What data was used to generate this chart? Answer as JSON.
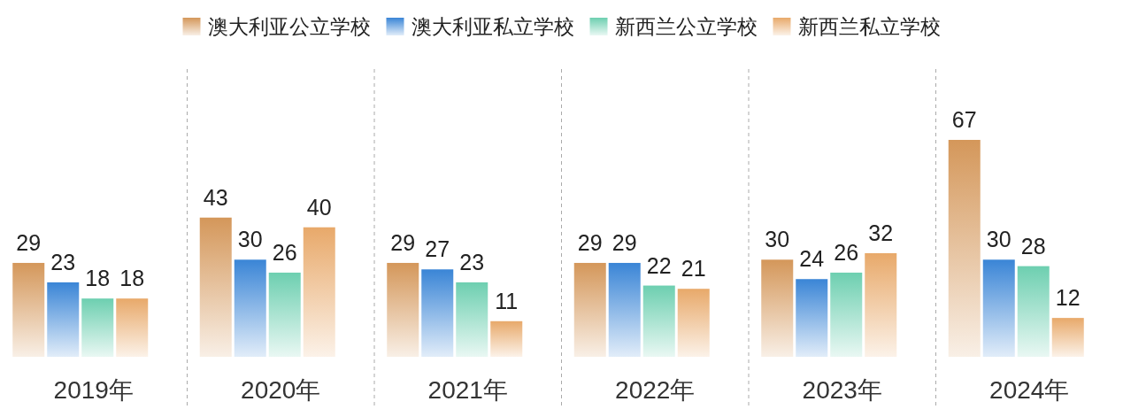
{
  "chart_data": {
    "type": "bar",
    "categories": [
      "2019年",
      "2020年",
      "2021年",
      "2022年",
      "2023年",
      "2024年"
    ],
    "series": [
      {
        "name": "澳大利亚公立学校",
        "color": "#d4975a",
        "values": [
          29,
          43,
          29,
          29,
          30,
          67
        ]
      },
      {
        "name": "澳大利亚私立学校",
        "color": "#3a85d6",
        "values": [
          23,
          30,
          27,
          29,
          24,
          30
        ]
      },
      {
        "name": "新西兰公立学校",
        "color": "#6dcfb0",
        "values": [
          18,
          26,
          23,
          22,
          26,
          28
        ]
      },
      {
        "name": "新西兰私立学校",
        "color": "#e8a96a",
        "values": [
          18,
          40,
          11,
          21,
          32,
          12
        ]
      }
    ],
    "data_labels": true,
    "legend": "top",
    "grid": "x"
  }
}
